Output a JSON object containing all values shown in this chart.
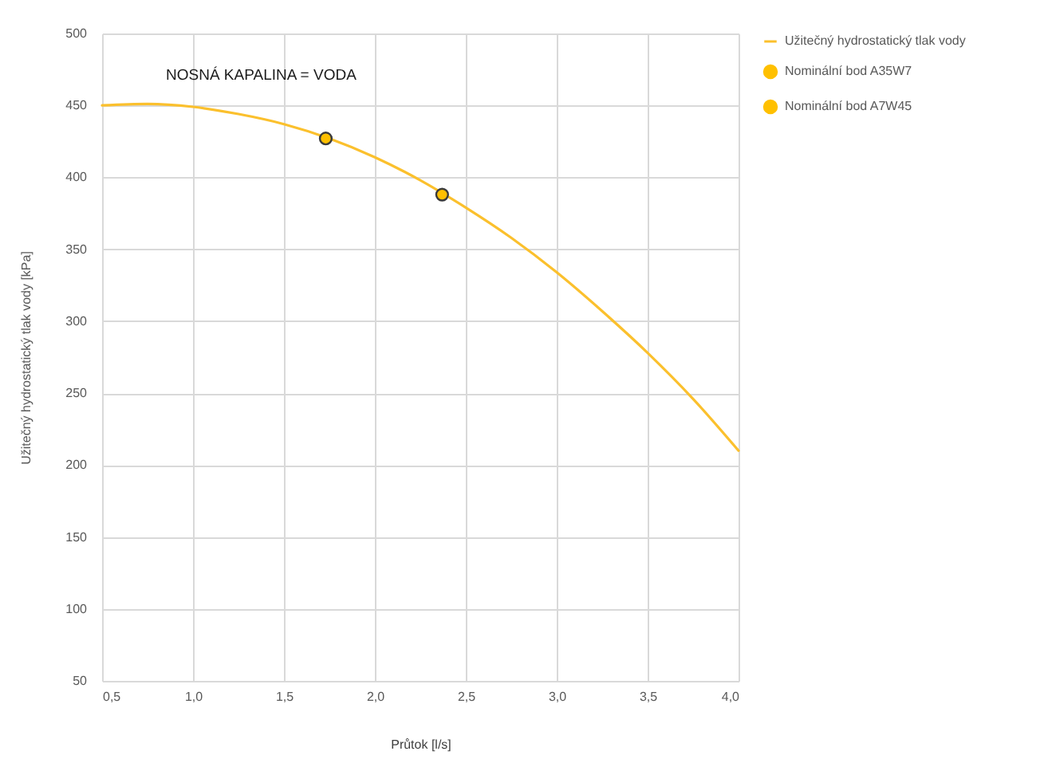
{
  "chart_data": {
    "type": "line",
    "xlabel": "Průtok [l/s]",
    "ylabel": "Užitečný hydrostatický tlak vody [kPa]",
    "annotations": [
      "NOSNÁ KAPALINA = VODA"
    ],
    "xlim": [
      0.5,
      4.0
    ],
    "ylim": [
      50,
      500
    ],
    "xticks": [
      {
        "value": 0.5,
        "label": "0,5"
      },
      {
        "value": 1.0,
        "label": "1,0"
      },
      {
        "value": 1.5,
        "label": "1,5"
      },
      {
        "value": 2.0,
        "label": "2,0"
      },
      {
        "value": 2.5,
        "label": "2,5"
      },
      {
        "value": 3.0,
        "label": "3,0"
      },
      {
        "value": 3.5,
        "label": "3,5"
      },
      {
        "value": 4.0,
        "label": "4,0"
      }
    ],
    "yticks": [
      50,
      100,
      150,
      200,
      250,
      300,
      350,
      400,
      450,
      500
    ],
    "grid": true,
    "legend": "right",
    "series": [
      {
        "name": "Užitečný hydrostatický tlak vody",
        "type": "line",
        "color": "#fbc02d",
        "marker": "none",
        "x": [
          0.5,
          0.75,
          1.0,
          1.25,
          1.5,
          1.75,
          2.0,
          2.25,
          2.5,
          2.75,
          3.0,
          3.25,
          3.5,
          3.75,
          4.0
        ],
        "values": [
          450,
          451,
          449,
          444,
          437,
          427,
          414,
          398,
          379,
          358,
          334,
          307,
          278,
          246,
          210
        ]
      },
      {
        "name": "Nominální bod A35W7",
        "type": "scatter",
        "color": "#ffc000",
        "marker": "circle",
        "x": [
          1.73
        ],
        "values": [
          427
        ]
      },
      {
        "name": "Nominální bod A7W45",
        "type": "scatter",
        "color": "#ffc000",
        "marker": "circle",
        "x": [
          2.37
        ],
        "values": [
          388
        ]
      }
    ]
  }
}
